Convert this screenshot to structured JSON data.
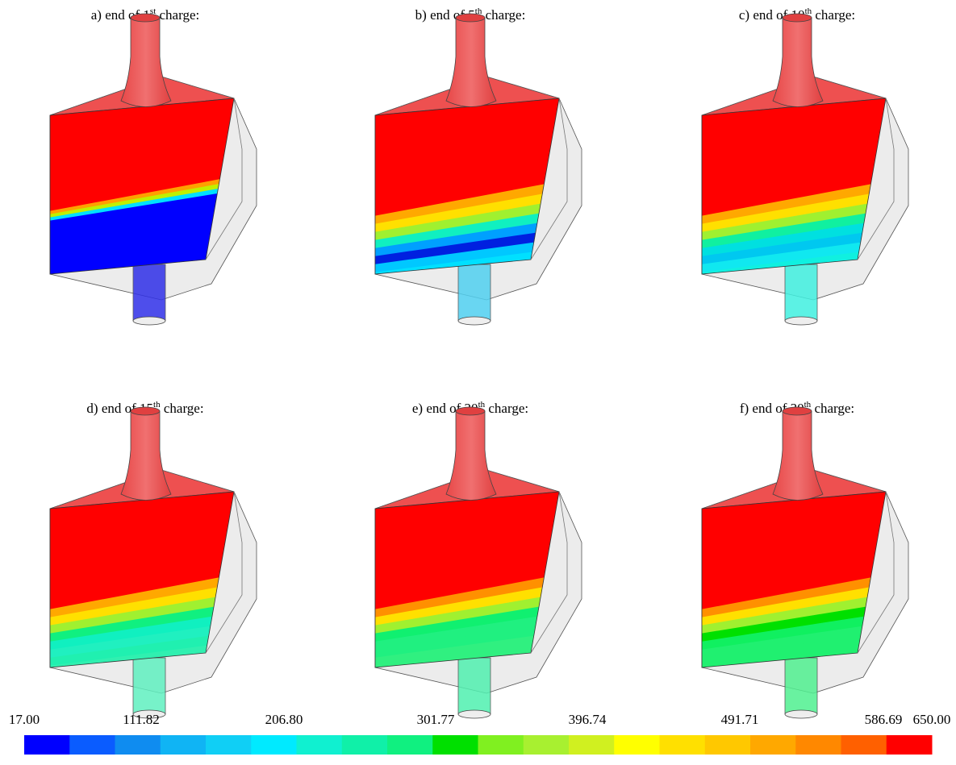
{
  "panels": [
    {
      "prefix": "a) end of 1",
      "sup": "st",
      "suffix": " charge:"
    },
    {
      "prefix": "b) end of 5",
      "sup": "th",
      "suffix": " charge:"
    },
    {
      "prefix": "c) end of 10",
      "sup": "th",
      "suffix": " charge:"
    },
    {
      "prefix": "d) end of 15",
      "sup": "th",
      "suffix": " charge:"
    },
    {
      "prefix": "e) end of 20",
      "sup": "th",
      "suffix": " charge:"
    },
    {
      "prefix": "f) end of 30",
      "sup": "th",
      "suffix": " charge:"
    }
  ],
  "colorbar": {
    "labels": [
      "17.00",
      "111.82",
      "206.80",
      "301.77",
      "396.74",
      "491.71",
      "586.69",
      "650.00"
    ],
    "colors": [
      "#0000ff",
      "#0a5cff",
      "#0f8cf0",
      "#10b4f4",
      "#10cff5",
      "#00eaff",
      "#10f0d0",
      "#10f0a8",
      "#10f080",
      "#00e000",
      "#80f020",
      "#a8f030",
      "#d0f020",
      "#ffff00",
      "#ffe000",
      "#ffc800",
      "#ffa800",
      "#ff8800",
      "#ff6000",
      "#ff0000"
    ]
  }
}
